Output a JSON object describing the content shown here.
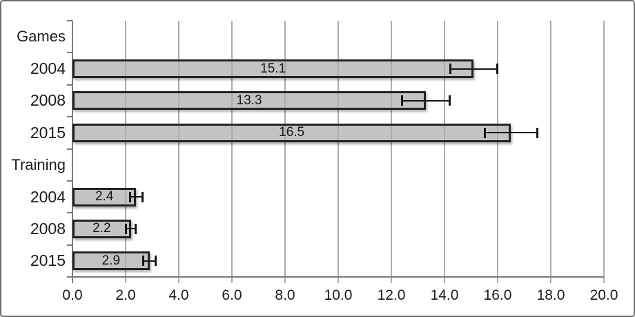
{
  "chart_data": {
    "type": "bar",
    "orientation": "horizontal",
    "title": "",
    "xlabel": "",
    "ylabel": "",
    "xlim": [
      0.0,
      20.0
    ],
    "xtick_interval": 2.0,
    "xtick_labels": [
      "0.0",
      "2.0",
      "4.0",
      "6.0",
      "8.0",
      "10.0",
      "12.0",
      "14.0",
      "16.0",
      "18.0",
      "20.0"
    ],
    "grid": true,
    "legend": "none",
    "bar_fill_color": "#C6C6C6",
    "bar_border_color": "#232323",
    "error_bar_color": "#151515",
    "gridline_color": "#ACACAC",
    "axis_color": "#7A7A7A",
    "text_color": "#1B1B1B",
    "rows": [
      {
        "label": "Games",
        "kind": "group",
        "value": null,
        "error": null
      },
      {
        "label": "2004",
        "kind": "bar",
        "value": 15.1,
        "error": 0.9
      },
      {
        "label": "2008",
        "kind": "bar",
        "value": 13.3,
        "error": 0.9
      },
      {
        "label": "2015",
        "kind": "bar",
        "value": 16.5,
        "error": 1.0
      },
      {
        "label": "Training",
        "kind": "group",
        "value": null,
        "error": null
      },
      {
        "label": "2004",
        "kind": "bar",
        "value": 2.4,
        "error": 0.25
      },
      {
        "label": "2008",
        "kind": "bar",
        "value": 2.2,
        "error": 0.2
      },
      {
        "label": "2015",
        "kind": "bar",
        "value": 2.9,
        "error": 0.25
      }
    ]
  }
}
